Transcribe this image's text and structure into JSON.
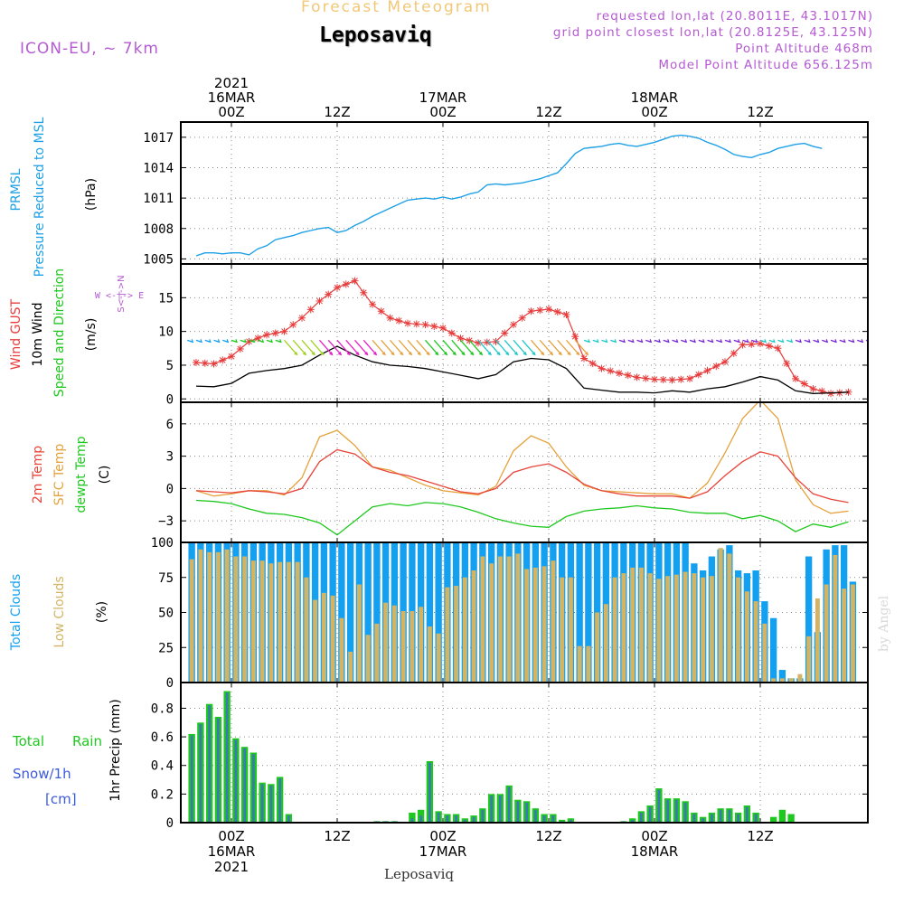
{
  "header": {
    "top_title": "Forecast Meteogram",
    "location": "Leposaviq",
    "model": "ICON-EU, ~ 7km",
    "requested": "requested lon,lat (20.8011E, 43.1017N)",
    "grid_point": "grid point closest lon,lat (20.8125E, 43.125N)",
    "point_altitude": "Point Altitude 468m",
    "model_altitude": "Model Point Altitude 656.125m",
    "footer": "Leposaviq",
    "watermark": "by Angel"
  },
  "time_axis": {
    "year": "2021",
    "top_ticks": [
      {
        "t": 0,
        "lines": [
          "2021",
          "16MAR",
          "00Z"
        ]
      },
      {
        "t": 12,
        "lines": [
          "12Z"
        ]
      },
      {
        "t": 24,
        "lines": [
          "17MAR",
          "00Z"
        ]
      },
      {
        "t": 36,
        "lines": [
          "12Z"
        ]
      },
      {
        "t": 48,
        "lines": [
          "18MAR",
          "00Z"
        ]
      },
      {
        "t": 60,
        "lines": [
          "12Z"
        ]
      }
    ],
    "bottom_ticks": [
      {
        "t": 0,
        "lines": [
          "00Z",
          "16MAR",
          "2021"
        ]
      },
      {
        "t": 12,
        "lines": [
          "12Z"
        ]
      },
      {
        "t": 24,
        "lines": [
          "00Z",
          "17MAR"
        ]
      },
      {
        "t": 36,
        "lines": [
          "12Z"
        ]
      },
      {
        "t": 48,
        "lines": [
          "00Z",
          "18MAR"
        ]
      },
      {
        "t": 60,
        "lines": [
          "12Z"
        ]
      }
    ]
  },
  "panel_labels": {
    "pressure": {
      "name1": "PRMSL",
      "name2": "Pressure Reduced to MSL",
      "unit": "(hPa)"
    },
    "wind": {
      "gust": "Wind GUST",
      "speed": "10m Wind",
      "dir": "Speed and Direction",
      "unit": "(m/s)",
      "compass": "W <-|-> E",
      "compass_v": "S<-|->N"
    },
    "temp": {
      "t2m": "2m Temp",
      "sfc": "SFC Temp",
      "dew": "dewpt Temp",
      "unit": "(C)"
    },
    "clouds": {
      "total": "Total Clouds",
      "low": "Low Clouds",
      "unit": "(%)"
    },
    "precip": {
      "total": "Total",
      "rain": "Rain",
      "snow": "Snow/1h",
      "snow_unit": "[cm]",
      "ylabel": "1hr Precip (mm)"
    }
  },
  "colors": {
    "pressure": "#1ea0e6",
    "gust": "#e83c3c",
    "wind": "#000000",
    "t2m": "#e8443a",
    "sfc": "#e6a23c",
    "dew": "#1ec81e",
    "total_clouds": "#14a0f0",
    "low_clouds": "#d2b464",
    "precip_total": "#1ec81e",
    "precip_rain": "#3c78b4",
    "title_orange": "#f0c878",
    "purple": "#b45ad2"
  },
  "chart_data": [
    {
      "id": "pressure",
      "type": "line",
      "title": "",
      "ylabel": "(hPa)",
      "ylim": [
        1004.5,
        1018.5
      ],
      "yticks": [
        1005,
        1008,
        1011,
        1014,
        1017
      ],
      "x_hours": [
        -4,
        -3,
        -2,
        -1,
        0,
        1,
        2,
        3,
        4,
        5,
        6,
        7,
        8,
        9,
        10,
        11,
        12,
        13,
        14,
        15,
        16,
        17,
        18,
        19,
        20,
        21,
        22,
        23,
        24,
        25,
        26,
        27,
        28,
        29,
        30,
        31,
        32,
        33,
        34,
        35,
        36,
        37,
        38,
        39,
        40,
        41,
        42,
        43,
        44,
        45,
        46,
        47,
        48,
        49,
        50,
        51,
        52,
        53,
        54,
        55,
        56,
        57,
        58,
        59,
        60,
        61,
        62,
        63,
        64,
        65,
        66,
        67,
        68,
        69,
        70,
        71
      ],
      "series": [
        {
          "name": "PRMSL",
          "values": [
            1005.3,
            1005.6,
            1005.6,
            1005.5,
            1005.6,
            1005.6,
            1005.4,
            1006.0,
            1006.3,
            1006.9,
            1007.1,
            1007.3,
            1007.6,
            1007.8,
            1008.0,
            1008.1,
            1007.6,
            1007.8,
            1008.3,
            1008.7,
            1009.2,
            1009.6,
            1010.0,
            1010.4,
            1010.8,
            1010.9,
            1011.0,
            1010.9,
            1011.1,
            1010.9,
            1011.1,
            1011.4,
            1011.6,
            1012.3,
            1012.4,
            1012.3,
            1012.4,
            1012.5,
            1012.7,
            1012.9,
            1013.2,
            1013.5,
            1014.4,
            1015.4,
            1015.9,
            1016.0,
            1016.1,
            1016.3,
            1016.4,
            1016.2,
            1016.1,
            1016.3,
            1016.5,
            1016.8,
            1017.1,
            1017.2,
            1017.1,
            1016.9,
            1016.5,
            1016.2,
            1015.8,
            1015.3,
            1015.1,
            1015.0,
            1015.3,
            1015.5,
            1015.9,
            1016.1,
            1016.3,
            1016.4,
            1016.1,
            1015.9
          ]
        }
      ]
    },
    {
      "id": "wind",
      "type": "line",
      "ylabel": "(m/s)",
      "ylim": [
        -0.5,
        20
      ],
      "yticks": [
        0,
        5,
        10,
        15
      ],
      "x_hours": [
        -4,
        -2,
        0,
        2,
        4,
        6,
        8,
        10,
        12,
        14,
        16,
        18,
        20,
        22,
        24,
        26,
        28,
        30,
        32,
        34,
        36,
        38,
        40,
        42,
        44,
        46,
        48,
        50,
        52,
        54,
        56,
        58,
        60,
        62,
        64,
        66,
        68,
        70
      ],
      "series": [
        {
          "name": "Wind GUST",
          "values": [
            5.4,
            5.2,
            6.3,
            8.5,
            9.5,
            10.0,
            12.0,
            14.5,
            16.5,
            17.5,
            14.0,
            12.0,
            11.2,
            11.0,
            10.5,
            9.0,
            8.3,
            8.5,
            11.0,
            13.0,
            13.3,
            12.5,
            6.0,
            4.5,
            3.8,
            3.2,
            2.9,
            2.8,
            3.0,
            4.2,
            5.5,
            8.0,
            8.2,
            7.5,
            3.0,
            1.5,
            0.8,
            1.0
          ]
        },
        {
          "name": "10m Wind",
          "values": [
            1.9,
            1.8,
            2.3,
            3.8,
            4.2,
            4.5,
            5.0,
            6.5,
            7.8,
            6.5,
            5.5,
            5.0,
            4.8,
            4.5,
            4.0,
            3.5,
            3.0,
            3.6,
            5.5,
            6.0,
            5.8,
            4.5,
            1.6,
            1.3,
            1.0,
            1.0,
            0.9,
            1.2,
            1.0,
            1.5,
            1.8,
            2.5,
            3.3,
            2.8,
            1.2,
            0.8,
            0.9,
            1.0
          ]
        }
      ],
      "direction_arrows": {
        "baseline_ms": 8.7,
        "note": "colored barbs along wind level; colors blue/cyan/green/orange/magenta/purple"
      }
    },
    {
      "id": "temperature",
      "type": "line",
      "ylabel": "(C)",
      "ylim": [
        -5,
        8
      ],
      "yticks": [
        -3,
        0,
        3,
        6
      ],
      "x_hours": [
        -4,
        -2,
        0,
        2,
        4,
        6,
        8,
        10,
        12,
        14,
        16,
        18,
        20,
        22,
        24,
        26,
        28,
        30,
        32,
        34,
        36,
        38,
        40,
        42,
        44,
        46,
        48,
        50,
        52,
        54,
        56,
        58,
        60,
        62,
        64,
        66,
        68,
        70
      ],
      "series": [
        {
          "name": "2m Temp",
          "values": [
            -0.2,
            -0.3,
            -0.4,
            -0.2,
            -0.3,
            -0.5,
            0.0,
            2.5,
            3.6,
            3.2,
            2.0,
            1.5,
            1.2,
            0.7,
            0.2,
            -0.3,
            -0.5,
            0.0,
            1.5,
            2.0,
            2.3,
            1.5,
            0.4,
            -0.2,
            -0.5,
            -0.7,
            -0.7,
            -0.7,
            -0.9,
            -0.3,
            1.2,
            2.5,
            3.4,
            3.0,
            1.0,
            -0.5,
            -1.0,
            -1.3
          ]
        },
        {
          "name": "SFC Temp",
          "values": [
            -0.2,
            -0.7,
            -0.5,
            -0.2,
            -0.2,
            -0.6,
            1.0,
            4.8,
            5.4,
            4.0,
            2.0,
            1.7,
            1.0,
            0.3,
            -0.2,
            -0.4,
            -0.6,
            0.2,
            3.5,
            4.9,
            4.2,
            2.0,
            0.3,
            -0.2,
            -0.3,
            -0.4,
            -0.5,
            -0.5,
            -0.9,
            0.5,
            3.3,
            6.5,
            8.2,
            6.5,
            0.8,
            -1.5,
            -2.3,
            -2.1
          ]
        },
        {
          "name": "dewpt Temp",
          "values": [
            -1.1,
            -1.2,
            -1.4,
            -1.9,
            -2.3,
            -2.4,
            -2.7,
            -3.2,
            -4.3,
            -3.0,
            -1.7,
            -1.4,
            -1.6,
            -1.3,
            -1.4,
            -1.7,
            -2.2,
            -2.8,
            -3.2,
            -3.5,
            -3.6,
            -2.6,
            -2.1,
            -1.9,
            -1.8,
            -1.6,
            -1.8,
            -1.9,
            -2.2,
            -2.3,
            -2.3,
            -2.8,
            -2.5,
            -3.0,
            -4.0,
            -3.3,
            -3.6,
            -3.1
          ]
        }
      ]
    },
    {
      "id": "clouds",
      "type": "bar",
      "ylabel": "(%)",
      "ylim": [
        0,
        100
      ],
      "yticks": [
        0,
        25,
        50,
        75,
        100
      ],
      "x_hours": [
        -4.5,
        -3.5,
        -2.5,
        -1.5,
        -0.5,
        0.5,
        1.5,
        2.5,
        3.5,
        4.5,
        5.5,
        6.5,
        7.5,
        8.5,
        9.5,
        10.5,
        11.5,
        12.5,
        13.5,
        14.5,
        15.5,
        16.5,
        17.5,
        18.5,
        19.5,
        20.5,
        21.5,
        22.5,
        23.5,
        24.5,
        25.5,
        26.5,
        27.5,
        28.5,
        29.5,
        30.5,
        31.5,
        32.5,
        33.5,
        34.5,
        35.5,
        36.5,
        37.5,
        38.5,
        39.5,
        40.5,
        41.5,
        42.5,
        43.5,
        44.5,
        45.5,
        46.5,
        47.5,
        48.5,
        49.5,
        50.5,
        51.5,
        52.5,
        53.5,
        54.5,
        55.5,
        56.5,
        57.5,
        58.5,
        59.5,
        60.5,
        61.5,
        62.5,
        63.5,
        64.5,
        65.5,
        66.5,
        67.5,
        68.5,
        69.5,
        70.5
      ],
      "series": [
        {
          "name": "Total Clouds",
          "values": [
            100,
            100,
            100,
            100,
            100,
            100,
            100,
            100,
            100,
            100,
            100,
            100,
            100,
            100,
            100,
            100,
            100,
            100,
            100,
            100,
            100,
            100,
            100,
            100,
            100,
            100,
            100,
            100,
            100,
            100,
            100,
            100,
            100,
            100,
            100,
            100,
            100,
            100,
            100,
            100,
            100,
            100,
            100,
            100,
            100,
            100,
            100,
            100,
            100,
            100,
            100,
            100,
            100,
            100,
            100,
            100,
            100,
            85,
            80,
            90,
            95,
            98,
            80,
            78,
            80,
            58,
            46,
            9,
            3,
            3,
            90,
            36,
            95,
            98,
            98,
            72
          ]
        },
        {
          "name": "Low Clouds",
          "values": [
            88,
            95,
            93,
            93,
            95,
            90,
            90,
            87,
            87,
            85,
            86,
            86,
            86,
            75,
            59,
            64,
            62,
            46,
            22,
            70,
            34,
            42,
            57,
            55,
            51,
            51,
            54,
            40,
            35,
            68,
            69,
            75,
            80,
            90,
            85,
            90,
            90,
            92,
            81,
            82,
            83,
            87,
            75,
            75,
            26,
            26,
            50,
            56,
            75,
            78,
            82,
            82,
            78,
            74,
            76,
            77,
            79,
            78,
            75,
            76,
            96,
            92,
            75,
            65,
            58,
            42,
            3,
            3,
            3,
            6,
            33,
            60,
            70,
            91,
            67,
            70
          ]
        }
      ]
    },
    {
      "id": "precip",
      "type": "bar",
      "ylabel": "1hr Precip (mm)",
      "ylim": [
        0,
        0.98
      ],
      "yticks": [
        0,
        0.2,
        0.4,
        0.6,
        0.8
      ],
      "x_hours": [
        -4.5,
        -3.5,
        -2.5,
        -1.5,
        -0.5,
        0.5,
        1.5,
        2.5,
        3.5,
        4.5,
        5.5,
        6.5,
        7.5,
        8.5,
        9.5,
        10.5,
        11.5,
        12.5,
        13.5,
        14.5,
        15.5,
        16.5,
        17.5,
        18.5,
        19.5,
        20.5,
        21.5,
        22.5,
        23.5,
        24.5,
        25.5,
        26.5,
        27.5,
        28.5,
        29.5,
        30.5,
        31.5,
        32.5,
        33.5,
        34.5,
        35.5,
        36.5,
        37.5,
        38.5,
        39.5,
        40.5,
        41.5,
        42.5,
        43.5,
        44.5,
        45.5,
        46.5,
        47.5,
        48.5,
        49.5,
        50.5,
        51.5,
        52.5,
        53.5,
        54.5,
        55.5,
        56.5,
        57.5,
        58.5,
        59.5,
        60.5,
        61.5,
        62.5,
        63.5,
        64.5,
        65.5,
        66.5,
        67.5,
        68.5,
        69.5,
        70.5
      ],
      "series": [
        {
          "name": "Total",
          "values": [
            0.62,
            0.7,
            0.83,
            0.74,
            0.92,
            0.59,
            0.53,
            0.49,
            0.28,
            0.27,
            0.32,
            0.06,
            0,
            0,
            0,
            0,
            0,
            0,
            0,
            0,
            0,
            0.01,
            0.01,
            0.01,
            0,
            0.07,
            0.09,
            0.43,
            0.08,
            0.06,
            0.06,
            0.03,
            0.05,
            0.1,
            0.2,
            0.2,
            0.26,
            0.16,
            0.15,
            0.1,
            0.06,
            0.06,
            0.02,
            0.03,
            0,
            0,
            0,
            0,
            0,
            0.01,
            0.03,
            0.08,
            0.12,
            0.24,
            0.17,
            0.17,
            0.15,
            0.07,
            0.04,
            0.07,
            0.1,
            0.1,
            0.07,
            0.12,
            0.07,
            0,
            0.04,
            0.09,
            0.06,
            0,
            0,
            0,
            0,
            0,
            0,
            0
          ]
        },
        {
          "name": "Rain",
          "values": [
            0.61,
            0.69,
            0.82,
            0.73,
            0.91,
            0.58,
            0.52,
            0.48,
            0.27,
            0.26,
            0.31,
            0.05,
            0,
            0,
            0,
            0,
            0,
            0,
            0,
            0,
            0,
            0.01,
            0.01,
            0.01,
            0,
            0.03,
            0.05,
            0.42,
            0.07,
            0.05,
            0.05,
            0.02,
            0.04,
            0.09,
            0.19,
            0.19,
            0.25,
            0.15,
            0.14,
            0.09,
            0.05,
            0.05,
            0.01,
            0.02,
            0,
            0,
            0,
            0,
            0,
            0.01,
            0.02,
            0.07,
            0.11,
            0.23,
            0.16,
            0.16,
            0.14,
            0.06,
            0.03,
            0.06,
            0.09,
            0.09,
            0.06,
            0.11,
            0.06,
            0,
            0,
            0,
            0,
            0,
            0,
            0,
            0,
            0,
            0,
            0
          ]
        }
      ]
    }
  ]
}
